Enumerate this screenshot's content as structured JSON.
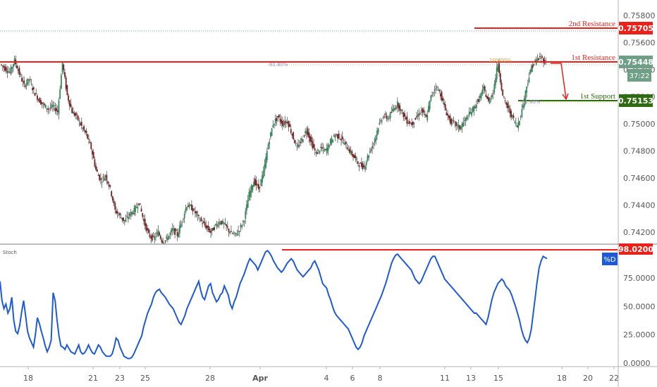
{
  "chart_data": [
    {
      "type": "candlestick",
      "title": "",
      "y_ticks": [
        "0.75800",
        "0.75600",
        "0.75400",
        "0.75200",
        "0.75000",
        "0.74800",
        "0.74600",
        "0.74400",
        "0.74200"
      ],
      "ylim": [
        0.7407,
        0.7587
      ],
      "x_ticks": [
        "18",
        "21",
        "23",
        "25",
        "28",
        "Apr",
        "4",
        "6",
        "8",
        "11",
        "13",
        "15",
        "18",
        "20",
        "22"
      ],
      "grid": false,
      "price_badges": [
        {
          "label": "0.75705",
          "value": 0.75705,
          "color": "#e8211a"
        },
        {
          "label": "0.75448",
          "value": 0.75448,
          "color": "#6f9f86"
        },
        {
          "label": "37:22",
          "color": "#6f9f86"
        },
        {
          "label": "0.75153",
          "value": 0.75153,
          "color": "#2e6b12"
        }
      ],
      "annotations": [
        {
          "label": "2nd Resistance",
          "value": 0.75705,
          "color": "#e8211a"
        },
        {
          "label": "1st Resistance",
          "value": 0.75475,
          "color": "#e8211a"
        },
        {
          "label": "1st Support",
          "value": 0.75153,
          "color": "#2e6b12"
        }
      ],
      "fib_labels": [
        "61.80%",
        "100.00%",
        "61.80%"
      ],
      "close_path": [
        [
          0,
          0.7544
        ],
        [
          1,
          0.7541
        ],
        [
          2,
          0.7538
        ],
        [
          3,
          0.7547
        ],
        [
          4,
          0.7537
        ],
        [
          5,
          0.7528
        ],
        [
          6,
          0.7533
        ],
        [
          7,
          0.7524
        ],
        [
          8,
          0.7518
        ],
        [
          9,
          0.7514
        ],
        [
          10,
          0.7511
        ],
        [
          11,
          0.7513
        ],
        [
          12,
          0.7509
        ],
        [
          13,
          0.7545
        ],
        [
          14,
          0.7521
        ],
        [
          15,
          0.7509
        ],
        [
          16,
          0.7505
        ],
        [
          17,
          0.7498
        ],
        [
          18,
          0.7492
        ],
        [
          19,
          0.7482
        ],
        [
          20,
          0.7466
        ],
        [
          21,
          0.7458
        ],
        [
          22,
          0.7462
        ],
        [
          23,
          0.7452
        ],
        [
          24,
          0.7436
        ],
        [
          25,
          0.7432
        ],
        [
          26,
          0.7428
        ],
        [
          27,
          0.7433
        ],
        [
          28,
          0.7436
        ],
        [
          29,
          0.7442
        ],
        [
          30,
          0.7428
        ],
        [
          31,
          0.7418
        ],
        [
          32,
          0.7415
        ],
        [
          33,
          0.742
        ],
        [
          34,
          0.7412
        ],
        [
          35,
          0.7416
        ],
        [
          36,
          0.7422
        ],
        [
          37,
          0.7418
        ],
        [
          38,
          0.7429
        ],
        [
          39,
          0.744
        ],
        [
          40,
          0.7438
        ],
        [
          41,
          0.7433
        ],
        [
          42,
          0.7428
        ],
        [
          43,
          0.7424
        ],
        [
          44,
          0.742
        ],
        [
          45,
          0.7425
        ],
        [
          46,
          0.7428
        ],
        [
          47,
          0.7425
        ],
        [
          48,
          0.742
        ],
        [
          49,
          0.7418
        ],
        [
          50,
          0.7422
        ],
        [
          51,
          0.743
        ],
        [
          52,
          0.7448
        ],
        [
          53,
          0.7458
        ],
        [
          54,
          0.7452
        ],
        [
          55,
          0.7464
        ],
        [
          56,
          0.7485
        ],
        [
          57,
          0.75
        ],
        [
          58,
          0.7505
        ],
        [
          59,
          0.75
        ],
        [
          60,
          0.7502
        ],
        [
          61,
          0.7492
        ],
        [
          62,
          0.7482
        ],
        [
          63,
          0.7488
        ],
        [
          64,
          0.7496
        ],
        [
          65,
          0.7486
        ],
        [
          66,
          0.7478
        ],
        [
          67,
          0.7482
        ],
        [
          68,
          0.748
        ],
        [
          69,
          0.7487
        ],
        [
          70,
          0.7492
        ],
        [
          71,
          0.749
        ],
        [
          72,
          0.7485
        ],
        [
          73,
          0.748
        ],
        [
          74,
          0.7475
        ],
        [
          75,
          0.747
        ],
        [
          76,
          0.7468
        ],
        [
          77,
          0.7478
        ],
        [
          78,
          0.7486
        ],
        [
          79,
          0.7498
        ],
        [
          80,
          0.7506
        ],
        [
          81,
          0.7504
        ],
        [
          82,
          0.751
        ],
        [
          83,
          0.7515
        ],
        [
          84,
          0.7508
        ],
        [
          85,
          0.7502
        ],
        [
          86,
          0.75
        ],
        [
          87,
          0.7505
        ],
        [
          88,
          0.751
        ],
        [
          89,
          0.7504
        ],
        [
          90,
          0.752
        ],
        [
          91,
          0.7528
        ],
        [
          92,
          0.7522
        ],
        [
          93,
          0.751
        ],
        [
          94,
          0.7502
        ],
        [
          95,
          0.75
        ],
        [
          96,
          0.7497
        ],
        [
          97,
          0.7502
        ],
        [
          98,
          0.7507
        ],
        [
          99,
          0.7512
        ],
        [
          100,
          0.7518
        ],
        [
          101,
          0.7526
        ],
        [
          102,
          0.7516
        ],
        [
          103,
          0.7524
        ],
        [
          104,
          0.7545
        ],
        [
          105,
          0.752
        ],
        [
          106,
          0.7512
        ],
        [
          107,
          0.7505
        ],
        [
          108,
          0.7498
        ],
        [
          109,
          0.751
        ],
        [
          110,
          0.7528
        ],
        [
          111,
          0.7542
        ],
        [
          112,
          0.7547
        ],
        [
          113,
          0.7549
        ],
        [
          114,
          0.7545
        ]
      ]
    },
    {
      "type": "line",
      "title": "Stoch",
      "legend": [
        "%D"
      ],
      "y_ticks": [
        "75.0000",
        "50.0000",
        "25.0000",
        "0.0000"
      ],
      "ylim": [
        -3,
        103
      ],
      "price_badge": {
        "label": "98.0200",
        "value": 98.02,
        "color": "#e8211a"
      },
      "reference_line": 98.02,
      "series": [
        {
          "name": "%D",
          "color": "#1f5ad6",
          "values": [
            72,
            55,
            48,
            52,
            44,
            48,
            58,
            38,
            28,
            26,
            33,
            45,
            55,
            42,
            28,
            22,
            18,
            14,
            25,
            40,
            35,
            28,
            22,
            15,
            10,
            14,
            20,
            62,
            55,
            38,
            24,
            15,
            14,
            12,
            16,
            13,
            10,
            9,
            8,
            12,
            16,
            10,
            8,
            9,
            12,
            16,
            12,
            9,
            8,
            12,
            16,
            14,
            10,
            8,
            6,
            6,
            6,
            8,
            14,
            22,
            20,
            14,
            10,
            6,
            5,
            4,
            4,
            5,
            8,
            12,
            16,
            20,
            24,
            32,
            38,
            44,
            48,
            52,
            58,
            62,
            64,
            65,
            62,
            60,
            58,
            55,
            52,
            50,
            48,
            44,
            40,
            36,
            34,
            38,
            42,
            48,
            52,
            56,
            60,
            64,
            68,
            72,
            64,
            58,
            56,
            62,
            68,
            70,
            62,
            58,
            54,
            56,
            60,
            62,
            68,
            64,
            60,
            52,
            48,
            54,
            58,
            64,
            70,
            74,
            78,
            83,
            88,
            92,
            90,
            88,
            86,
            82,
            86,
            90,
            94,
            98,
            99,
            97,
            94,
            90,
            87,
            84,
            82,
            80,
            82,
            85,
            88,
            90,
            92,
            90,
            86,
            82,
            80,
            78,
            76,
            78,
            80,
            82,
            84,
            88,
            90,
            86,
            82,
            76,
            70,
            68,
            66,
            60,
            56,
            50,
            45,
            42,
            40,
            38,
            36,
            34,
            32,
            30,
            26,
            22,
            18,
            14,
            12,
            14,
            18,
            24,
            28,
            32,
            36,
            40,
            44,
            48,
            52,
            56,
            60,
            65,
            70,
            76,
            82,
            88,
            92,
            95,
            96,
            94,
            92,
            90,
            88,
            86,
            84,
            82,
            78,
            74,
            72,
            70,
            72,
            76,
            80,
            84,
            88,
            92,
            94,
            94,
            90,
            86,
            82,
            78,
            74,
            72,
            70,
            68,
            66,
            64,
            62,
            60,
            58,
            56,
            54,
            52,
            50,
            48,
            46,
            44,
            44,
            42,
            40,
            38,
            36,
            34,
            40,
            48,
            56,
            62,
            66,
            70,
            72,
            74,
            72,
            68,
            66,
            64,
            60,
            55,
            50,
            44,
            38,
            30,
            24,
            20,
            18,
            22,
            30,
            44,
            58,
            72,
            84,
            90,
            94,
            93,
            92
          ]
        }
      ]
    }
  ]
}
